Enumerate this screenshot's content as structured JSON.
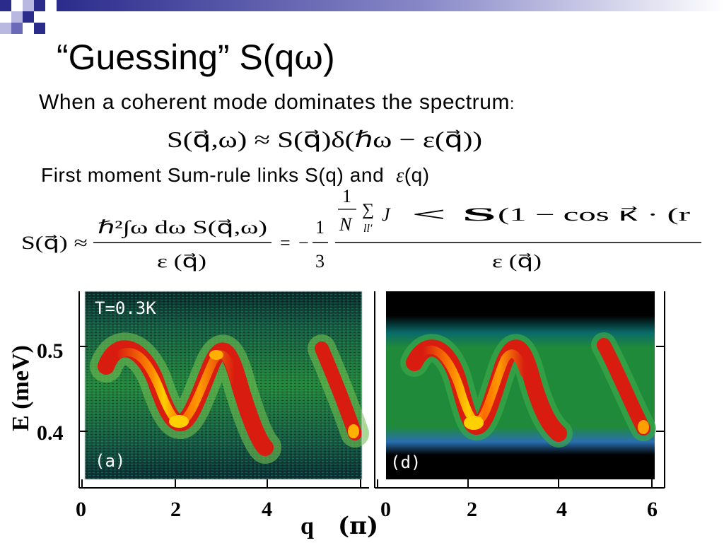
{
  "slide": {
    "title_prefix": "“Guessing” S(q",
    "title_omega": "ω",
    "title_suffix": ")",
    "line1": "When a coherent mode dominates the spectrum",
    "line1_colon": ":",
    "line2_prefix": "First moment Sum-rule links S(q) and",
    "line2_eps": "ε",
    "line2_suffix": "(q)"
  },
  "equations": {
    "eq1": {
      "lhs": "S(q⃗,ω) ≈ S(q⃗)δ(ℏω − ε(q⃗))"
    },
    "eq2": {
      "lhs": "S(q⃗) ≈",
      "frac1_num": "ℏ²∫ω dω S(q⃗,ω)",
      "frac1_den": "ε (q⃗)",
      "eq_sign": "=",
      "minus_third": "−",
      "third_num": "1",
      "third_den": "3",
      "frac2_inner_num": "1",
      "frac2_inner_den": "N",
      "sum_sub": "ll′",
      "frac2_num_body": "J",
      "frac2_num_rest": "< S",
      "frac2_num_cos": "(1 − cos κ⃗ · (r",
      "frac2_den": "ε (q⃗)"
    }
  },
  "figure": {
    "panel_a": {
      "temp_label": "T=0.3K",
      "panel_label": "(a)"
    },
    "panel_d": {
      "panel_label": "(d)"
    },
    "y_axis": {
      "label": "E (meV)",
      "ticks": [
        "0.5",
        "0.4"
      ]
    },
    "x_axis": {
      "label_q": "q",
      "label_unit": "(π)",
      "ticks_a": [
        "0",
        "2",
        "4"
      ],
      "ticks_d": [
        "0",
        "2",
        "4",
        "6"
      ]
    }
  },
  "colors": {
    "deco_dark": "#2b2b8c",
    "deco_mid": "#6a6ab8",
    "deco_light": "#b8b8e0",
    "spectrum_background": "#1f8a3a",
    "mode_hot": "#ffd000",
    "mode_red": "#d81c10"
  }
}
